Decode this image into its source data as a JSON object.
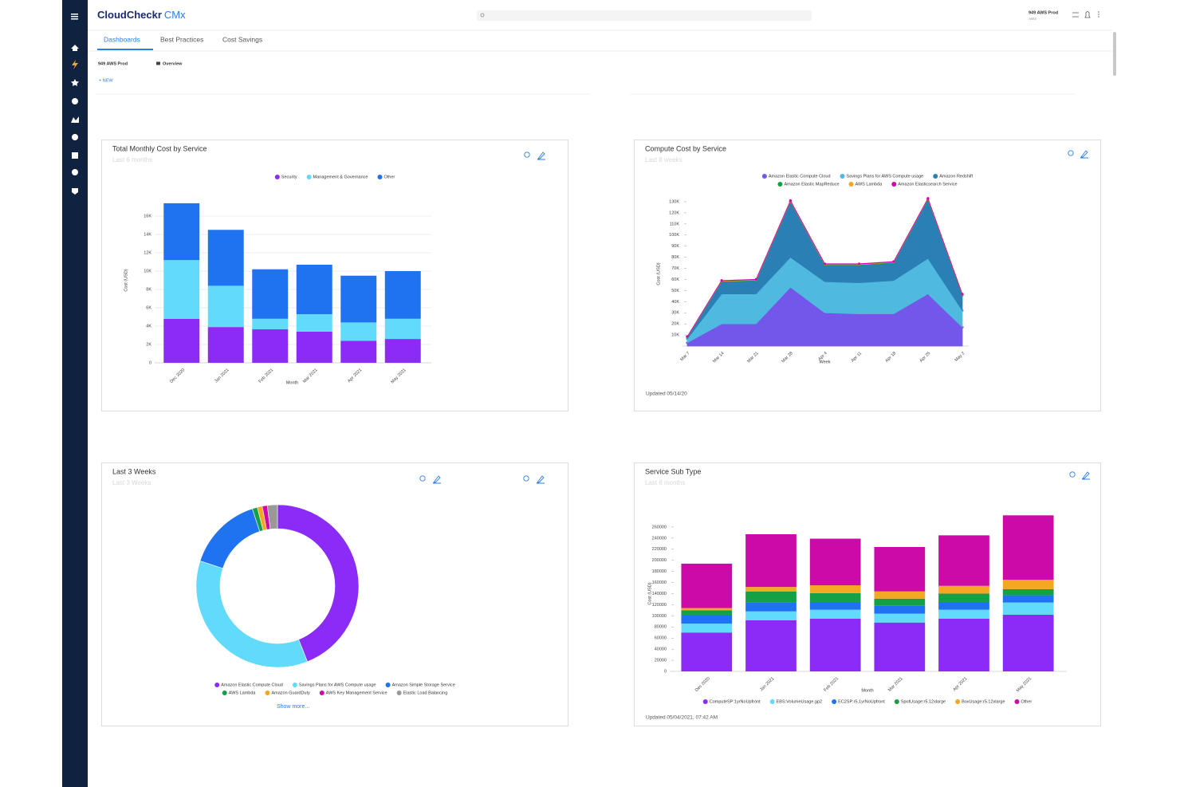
{
  "header": {
    "logo": "CloudCheckr",
    "logo_suffix": "CMx",
    "account": "949 AWS Prod",
    "account_sub": "AWS"
  },
  "tabs": [
    "Dashboards",
    "Best Practices",
    "Cost Savings"
  ],
  "toolbar": {
    "account": "949 AWS Prod",
    "view": "Overview",
    "new": "+ NEW"
  },
  "chart_data": [
    {
      "type": "bar",
      "stacked": true,
      "title": "Total Monthly Cost by Service",
      "subtitle": "Last 6 months",
      "categories": [
        "Dec 2020",
        "Jan 2021",
        "Feb 2021",
        "Mar 2021",
        "Apr 2021",
        "May 2021"
      ],
      "series": [
        {
          "name": "Security",
          "color": "#8a2cf5",
          "values": [
            4800,
            3900,
            3650,
            3400,
            2400,
            2600
          ]
        },
        {
          "name": "Management & Governance",
          "color": "#62dafc",
          "values": [
            6400,
            4500,
            1150,
            1900,
            2000,
            2200
          ]
        },
        {
          "name": "Other",
          "color": "#1f72f0",
          "values": [
            6200,
            6100,
            5400,
            5400,
            5100,
            5200
          ]
        }
      ],
      "xlabel": "Month",
      "ylabel": "Cost (USD)",
      "ylim": [
        0,
        18000
      ],
      "yticks": [
        0,
        {
          "value": 2000,
          "label": "2K"
        },
        {
          "value": 4000,
          "label": "4K"
        },
        {
          "value": 6000,
          "label": "6K"
        },
        {
          "value": 8000,
          "label": "8K"
        },
        {
          "value": 10000,
          "label": "10K"
        },
        {
          "value": 12000,
          "label": "12K"
        },
        {
          "value": 14000,
          "label": "14K"
        },
        {
          "value": 16000,
          "label": "16K"
        }
      ],
      "grid": true
    },
    {
      "type": "area",
      "stacked": true,
      "title": "Compute Cost by Service",
      "subtitle": "Last 8 weeks",
      "categories": [
        "Mar 7",
        "Mar 14",
        "Mar 21",
        "Mar 28",
        "Apr 4",
        "Apr 11",
        "Apr 18",
        "Apr 25",
        "May 2"
      ],
      "series": [
        {
          "name": "Amazon Elastic Compute Cloud",
          "color": "#7257ea",
          "values": [
            3000,
            20000,
            20000,
            53000,
            30000,
            29000,
            29000,
            47000,
            17000
          ]
        },
        {
          "name": "Savings Plans for AWS Compute usage",
          "color": "#4fb9df",
          "values": [
            3500,
            27000,
            27000,
            27000,
            28000,
            28000,
            30000,
            32000,
            15000
          ]
        },
        {
          "name": "Amazon Redshift",
          "color": "#2a7fb4",
          "values": [
            1500,
            11000,
            12000,
            50000,
            15000,
            16000,
            16000,
            53000,
            14000
          ]
        },
        {
          "name": "Amazon Elastic MapReduce",
          "color": "#14a045",
          "values": [
            200,
            400,
            400,
            400,
            400,
            400,
            400,
            400,
            300
          ]
        },
        {
          "name": "AWS Lambda",
          "color": "#f5a623",
          "values": [
            200,
            400,
            400,
            400,
            400,
            400,
            400,
            400,
            300
          ]
        },
        {
          "name": "Amazon Elasticsearch Service",
          "color": "#cc0aa8",
          "values": [
            200,
            300,
            300,
            300,
            300,
            300,
            300,
            300,
            200
          ]
        }
      ],
      "xlabel": "Week",
      "ylabel": "Cost (USD)",
      "ylim": [
        0,
        130000
      ],
      "yticks": [
        {
          "value": 10000,
          "label": "10K"
        },
        {
          "value": 20000,
          "label": "20K"
        },
        {
          "value": 30000,
          "label": "30K"
        },
        {
          "value": 40000,
          "label": "40K"
        },
        {
          "value": 50000,
          "label": "50K"
        },
        {
          "value": 60000,
          "label": "60K"
        },
        {
          "value": 70000,
          "label": "70K"
        },
        {
          "value": 80000,
          "label": "80K"
        },
        {
          "value": 90000,
          "label": "90K"
        },
        {
          "value": 100000,
          "label": "100K"
        },
        {
          "value": 110000,
          "label": "110K"
        },
        {
          "value": 120000,
          "label": "120K"
        },
        {
          "value": 130000,
          "label": "130K"
        }
      ],
      "grid": false,
      "footer": "Updated 05/14/20"
    },
    {
      "type": "pie",
      "donut": true,
      "title": "Last 3 Weeks",
      "subtitle": "Last 3 Weeks",
      "categories": [
        "Amazon Elastic Compute Cloud",
        "Savings Plans for AWS Compute usage",
        "Amazon Simple Storage Service",
        "AWS Lambda",
        "Amazon GuardDuty",
        "AWS Key Management Service",
        "Elastic Load Balancing"
      ],
      "values": [
        44,
        36,
        15,
        1,
        1,
        1,
        2
      ],
      "colors": [
        "#8a2cf5",
        "#62dafc",
        "#1f72f0",
        "#14a045",
        "#f5a623",
        "#cc0aa8",
        "#999999"
      ],
      "show_more": "Show more..."
    },
    {
      "type": "bar",
      "stacked": true,
      "title": "Service Sub Type",
      "subtitle": "Last 6 months",
      "categories": [
        "Dec 2020",
        "Jan 2021",
        "Feb 2021",
        "Mar 2021",
        "Apr 2021",
        "May 2021"
      ],
      "series": [
        {
          "name": "ComputeSP:1yrNoUpfront",
          "color": "#8a2cf5",
          "values": [
            70000,
            92000,
            95000,
            88000,
            95000,
            102000
          ]
        },
        {
          "name": "EBS:VolumeUsage.gp2",
          "color": "#62dafc",
          "values": [
            16000,
            16000,
            16000,
            16000,
            16000,
            22000
          ]
        },
        {
          "name": "EC2SP:r5.1yrNoUpfront",
          "color": "#1f72f0",
          "values": [
            16000,
            16000,
            14000,
            14000,
            14000,
            13000
          ]
        },
        {
          "name": "SpotUsage:r5.12xlarge",
          "color": "#14a045",
          "values": [
            8000,
            20000,
            16000,
            13000,
            15000,
            11000
          ]
        },
        {
          "name": "BoxUsage:r5.12xlarge",
          "color": "#f5a623",
          "values": [
            4000,
            8000,
            14000,
            13000,
            14000,
            17000
          ]
        },
        {
          "name": "Other",
          "color": "#cc0aa8",
          "values": [
            80000,
            95000,
            84000,
            80000,
            91000,
            116000
          ]
        }
      ],
      "xlabel": "Month",
      "ylabel": "Cost (USD)",
      "ylim": [
        0,
        280000
      ],
      "yticks": [
        0,
        20000,
        40000,
        60000,
        80000,
        100000,
        120000,
        140000,
        160000,
        180000,
        200000,
        220000,
        240000,
        260000
      ],
      "grid": false,
      "footer": "Updated 05/04/2021, 07:42 AM"
    }
  ]
}
